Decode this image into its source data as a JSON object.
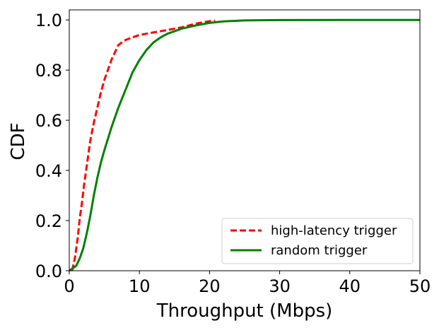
{
  "chart_data": {
    "type": "line",
    "xlabel": "Throughput (Mbps)",
    "ylabel": "CDF",
    "xlim": [
      0,
      50
    ],
    "ylim": [
      0,
      1.04
    ],
    "xticks": [
      0,
      10,
      20,
      30,
      40,
      50
    ],
    "xtick_labels": [
      "0",
      "10",
      "20",
      "30",
      "40",
      "50"
    ],
    "yticks": [
      0.0,
      0.2,
      0.4,
      0.6,
      0.8,
      1.0
    ],
    "ytick_labels": [
      "0.0",
      "0.2",
      "0.4",
      "0.6",
      "0.8",
      "1.0"
    ],
    "grid": false,
    "legend_position": "lower-right",
    "series": [
      {
        "name": "high-latency trigger",
        "color": "#ff0000",
        "style": "dashed",
        "x": [
          0.4,
          0.8,
          1.2,
          1.5,
          1.8,
          2.1,
          2.5,
          3.0,
          3.5,
          4.0,
          4.5,
          5.0,
          5.5,
          6.0,
          6.5,
          7.0,
          7.5,
          8.0,
          9.0,
          10.0,
          12.0,
          14.0,
          16.0,
          18.0,
          20.0,
          20.8
        ],
        "y": [
          0.0,
          0.05,
          0.13,
          0.21,
          0.27,
          0.34,
          0.42,
          0.52,
          0.59,
          0.65,
          0.71,
          0.76,
          0.8,
          0.84,
          0.87,
          0.9,
          0.91,
          0.92,
          0.93,
          0.94,
          0.95,
          0.96,
          0.97,
          0.985,
          0.995,
          0.997
        ]
      },
      {
        "name": "random trigger",
        "color": "#008000",
        "style": "solid",
        "x": [
          0.0,
          0.5,
          1.0,
          1.5,
          2.0,
          2.5,
          3.0,
          3.5,
          4.0,
          4.5,
          5.0,
          6.0,
          7.0,
          8.0,
          9.0,
          10.0,
          11.0,
          12.0,
          13.0,
          14.0,
          15.0,
          16.0,
          18.0,
          20.0,
          22.0,
          25.0,
          30.0,
          40.0,
          50.0
        ],
        "y": [
          0.0,
          0.01,
          0.02,
          0.05,
          0.09,
          0.15,
          0.22,
          0.3,
          0.37,
          0.43,
          0.48,
          0.57,
          0.65,
          0.72,
          0.79,
          0.84,
          0.88,
          0.91,
          0.93,
          0.945,
          0.955,
          0.965,
          0.978,
          0.988,
          0.994,
          0.998,
          0.9995,
          1.0,
          1.0
        ]
      }
    ]
  }
}
